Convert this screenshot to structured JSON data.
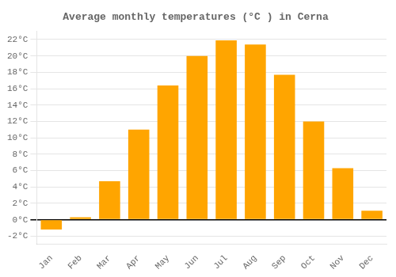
{
  "chart_data": {
    "type": "bar",
    "title": "Average monthly temperatures (°C ) in Cerna",
    "categories": [
      "Jan",
      "Feb",
      "Mar",
      "Apr",
      "May",
      "Jun",
      "Jul",
      "Aug",
      "Sep",
      "Oct",
      "Nov",
      "Dec"
    ],
    "values": [
      -1.2,
      0.3,
      4.7,
      11.0,
      16.4,
      20.0,
      21.9,
      21.4,
      17.7,
      12.0,
      6.3,
      1.1
    ],
    "color": "#FFA500",
    "ylim": [
      -3,
      23
    ],
    "yticks": [
      {
        "value": -2,
        "label": "-2°C"
      },
      {
        "value": 0,
        "label": "0°C"
      },
      {
        "value": 2,
        "label": "2°C"
      },
      {
        "value": 4,
        "label": "4°C"
      },
      {
        "value": 6,
        "label": "6°C"
      },
      {
        "value": 8,
        "label": "8°C"
      },
      {
        "value": 10,
        "label": "10°C"
      },
      {
        "value": 12,
        "label": "12°C"
      },
      {
        "value": 14,
        "label": "14°C"
      },
      {
        "value": 16,
        "label": "16°C"
      },
      {
        "value": 18,
        "label": "18°C"
      },
      {
        "value": 20,
        "label": "20°C"
      },
      {
        "value": 22,
        "label": "22°C"
      }
    ],
    "grid": true
  }
}
